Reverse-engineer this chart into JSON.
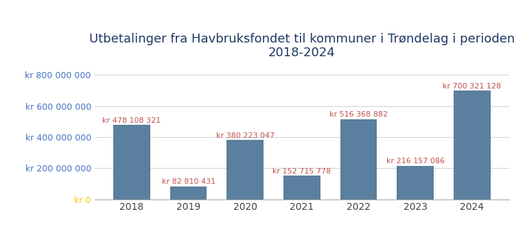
{
  "title": "Utbetalinger fra Havbruksfondet til kommuner i Trøndelag i perioden\n2018-2024",
  "years": [
    2018,
    2019,
    2020,
    2021,
    2022,
    2023,
    2024
  ],
  "values": [
    478108321,
    82810431,
    380223047,
    152715778,
    516368882,
    216157086,
    700321128
  ],
  "labels": [
    "kr 478 108 321",
    "kr 82 810 431",
    "kr 380 223 047",
    "kr 152 715 778",
    "kr 516 368 882",
    "kr 216 157 086",
    "kr 700 321 128"
  ],
  "bar_color": "#5b7f9e",
  "label_color": "#c0504d",
  "title_color": "#1f3864",
  "ytick_color": "#4472c4",
  "xtick_color": "#404040",
  "zero_label_color": "#ffc000",
  "background_color": "#ffffff",
  "ylim": [
    0,
    870000000
  ],
  "yticks": [
    0,
    200000000,
    400000000,
    600000000,
    800000000
  ],
  "ytick_labels": [
    "kr 0",
    "kr 200 000 000",
    "kr 400 000 000",
    "kr 600 000 000",
    "kr 800 000 000"
  ],
  "title_fontsize": 13,
  "label_fontsize": 8,
  "tick_fontsize": 9,
  "xtick_fontsize": 10
}
